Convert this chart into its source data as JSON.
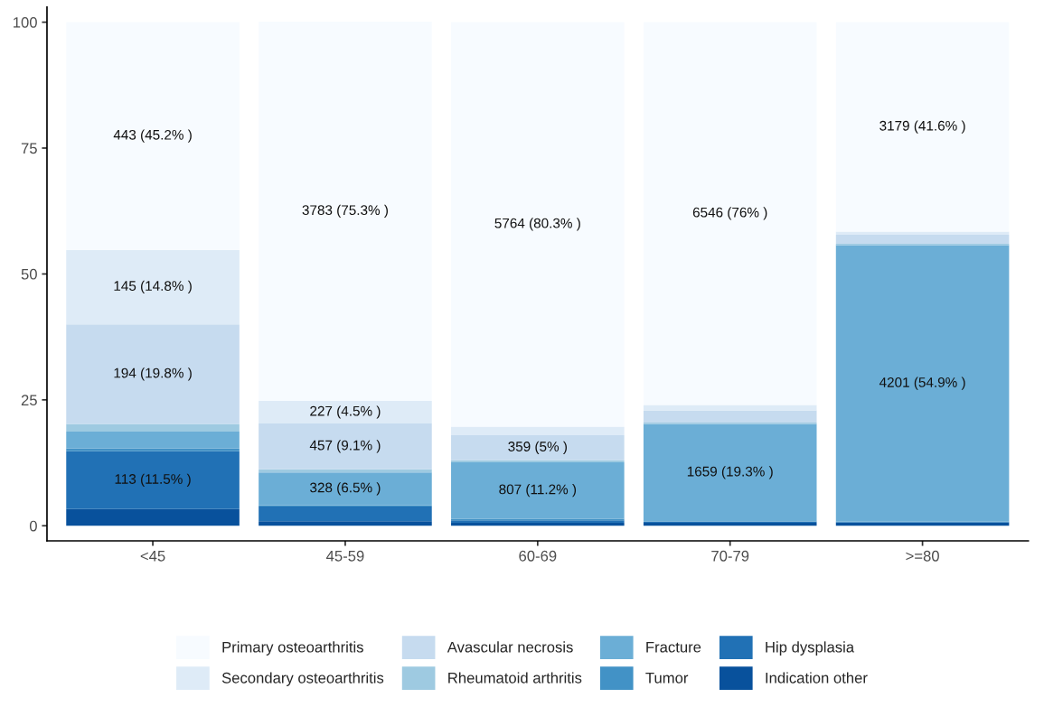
{
  "chart_data": {
    "type": "bar",
    "stacked": true,
    "categories": [
      "<45",
      "45-59",
      "60-69",
      "70-79",
      ">=80"
    ],
    "ylim": [
      -3,
      103
    ],
    "yticks": [
      0,
      25,
      50,
      75,
      100
    ],
    "grid": false,
    "legend": "bottom",
    "series": [
      {
        "name": "Indication other",
        "color": "#08519c",
        "values": [
          3.3,
          0.9,
          0.6,
          0.6,
          0.6
        ],
        "value_labels": [
          null,
          null,
          null,
          null,
          null
        ]
      },
      {
        "name": "Hip dysplasia",
        "color": "#2171b5",
        "values": [
          11.5,
          2.9,
          0.5,
          0.2,
          0.1
        ],
        "value_labels": [
          "113 (11.5% )",
          null,
          null,
          null,
          null
        ]
      },
      {
        "name": "Tumor",
        "color": "#4292c6",
        "values": [
          0.6,
          0.3,
          0.3,
          0.1,
          0.1
        ],
        "value_labels": [
          null,
          null,
          null,
          null,
          null
        ]
      },
      {
        "name": "Fracture",
        "color": "#6baed6",
        "values": [
          3.3,
          6.5,
          11.2,
          19.3,
          54.9
        ],
        "value_labels": [
          null,
          "328 (6.5% )",
          "807 (11.2% )",
          "1659 (19.3% )",
          "4201 (54.9% )"
        ]
      },
      {
        "name": "Rheumatoid arthritis",
        "color": "#9ecae1",
        "values": [
          1.5,
          0.6,
          0.4,
          0.3,
          0.3
        ],
        "value_labels": [
          null,
          null,
          null,
          null,
          null
        ]
      },
      {
        "name": "Avascular necrosis",
        "color": "#c6dbef",
        "values": [
          19.8,
          9.1,
          5,
          2.4,
          1.8
        ],
        "value_labels": [
          "194 (19.8% )",
          "457 (9.1% )",
          "359 (5% )",
          null,
          null
        ]
      },
      {
        "name": "Secondary osteoarthritis",
        "color": "#deebf7",
        "values": [
          14.8,
          4.5,
          1.7,
          1.1,
          0.6
        ],
        "value_labels": [
          "145 (14.8% )",
          "227 (4.5% )",
          null,
          null,
          null
        ]
      },
      {
        "name": "Primary osteoarthritis",
        "color": "#f7fbff",
        "values": [
          45.2,
          75.3,
          80.3,
          76,
          41.6
        ],
        "value_labels": [
          "443 (45.2% )",
          "3783 (75.3% )",
          "5764 (80.3% )",
          "6546 (76% )",
          "3179 (41.6% )"
        ]
      }
    ]
  }
}
